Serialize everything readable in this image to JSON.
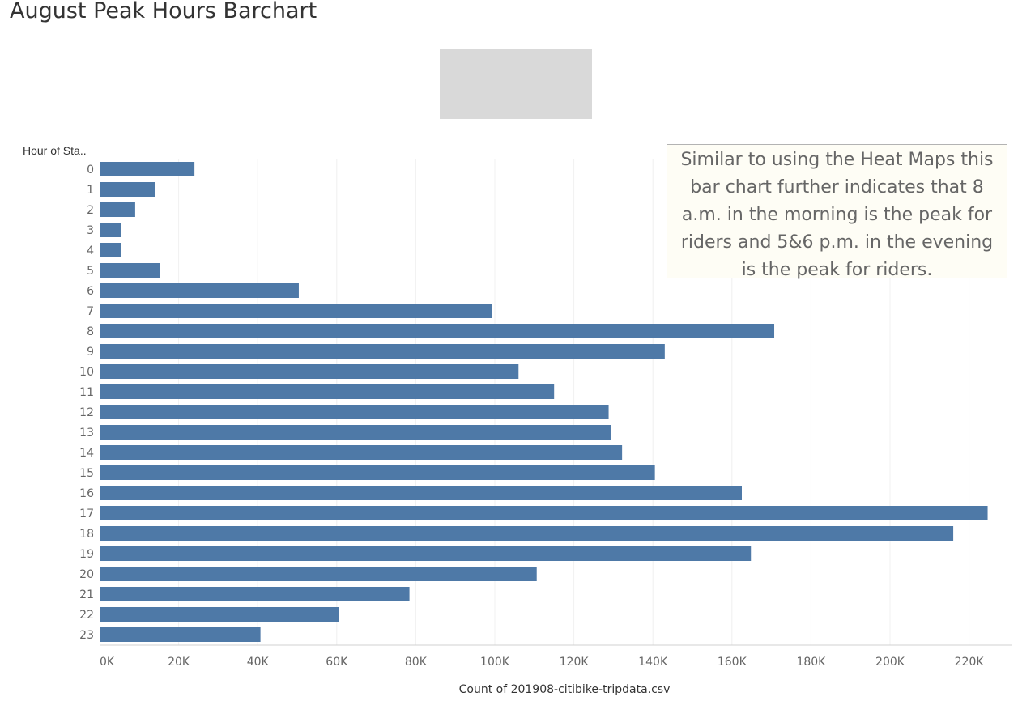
{
  "title": "August Peak Hours Barchart",
  "annotation": "Similar to using the Heat Maps this bar chart further indicates that 8 a.m. in the morning is the peak for riders and 5&6 p.m. in the evening is the peak for riders.",
  "colors": {
    "bar": "#4e79a7",
    "gridline": "#f0f0f0",
    "placeholder": "#d9d9d9",
    "annotation_bg": "#fefdf5"
  },
  "chart_data": {
    "type": "bar",
    "orientation": "horizontal",
    "ylabel": "Hour of Sta..",
    "xlabel": "Count of 201908-citibike-tripdata.csv",
    "categories": [
      "0",
      "1",
      "2",
      "3",
      "4",
      "5",
      "6",
      "7",
      "8",
      "9",
      "10",
      "11",
      "12",
      "13",
      "14",
      "15",
      "16",
      "17",
      "18",
      "19",
      "20",
      "21",
      "22",
      "23"
    ],
    "values": [
      24000,
      14000,
      9000,
      5500,
      5400,
      15200,
      50400,
      99300,
      170700,
      143000,
      106000,
      115000,
      128800,
      129300,
      132200,
      140500,
      162500,
      224700,
      216000,
      164800,
      110600,
      78400,
      60500,
      40700
    ],
    "xticks": [
      "0K",
      "20K",
      "40K",
      "60K",
      "80K",
      "100K",
      "120K",
      "140K",
      "160K",
      "180K",
      "200K",
      "220K"
    ],
    "xlim": [
      0,
      230000
    ],
    "grid": true
  }
}
